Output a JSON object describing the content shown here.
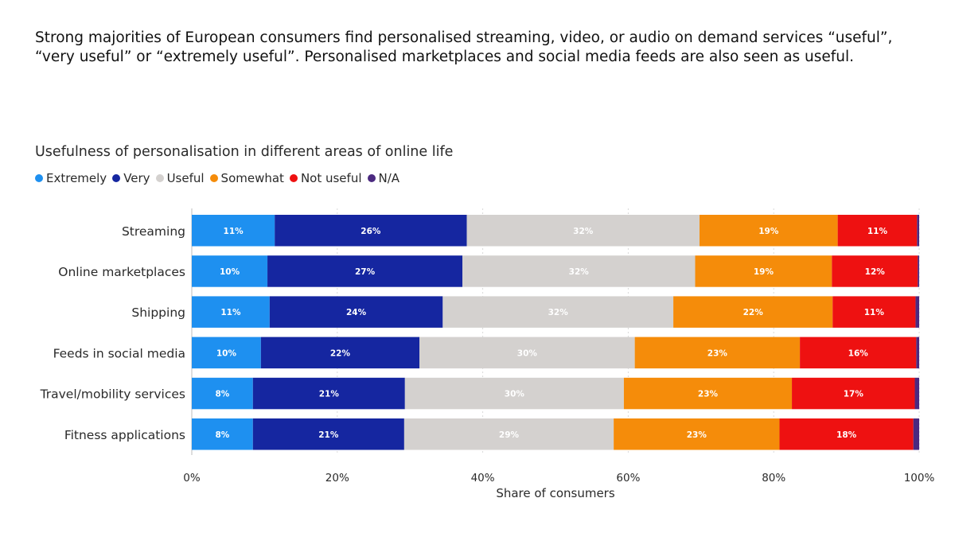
{
  "headline": "Strong majorities of European consumers find personalised streaming, video, or audio on demand services “useful”, “very useful” or “extremely useful”. Personalised marketplaces and social media feeds are also seen as useful.",
  "chart_data": {
    "type": "bar",
    "orientation": "horizontal",
    "stacked": true,
    "title": "Usefulness of personalisation in different areas of online life",
    "xlabel": "Share of consumers",
    "ylabel": "",
    "xlim": [
      0,
      100
    ],
    "xticks": [
      "0%",
      "20%",
      "40%",
      "60%",
      "80%",
      "100%"
    ],
    "grid": true,
    "legend_position": "top-left",
    "categories": [
      "Streaming",
      "Online marketplaces",
      "Shipping",
      "Feeds in social media",
      "Travel/mobility services",
      "Fitness applications"
    ],
    "series": [
      {
        "name": "Extremely",
        "color": "#1e90f0",
        "values": [
          11.4,
          10.4,
          10.7,
          9.5,
          8.4,
          8.4
        ],
        "labels": [
          "11%",
          "10%",
          "11%",
          "10%",
          "8%",
          "8%"
        ]
      },
      {
        "name": "Very",
        "color": "#1526a0",
        "values": [
          26.4,
          26.8,
          23.8,
          21.8,
          20.9,
          20.8
        ],
        "labels": [
          "26%",
          "27%",
          "24%",
          "22%",
          "21%",
          "21%"
        ]
      },
      {
        "name": "Useful",
        "color": "#d4d1cf",
        "values": [
          32.0,
          32.0,
          31.7,
          29.6,
          30.1,
          28.8
        ],
        "labels": [
          "32%",
          "32%",
          "32%",
          "30%",
          "30%",
          "29%"
        ]
      },
      {
        "name": "Somewhat",
        "color": "#f58c0a",
        "values": [
          19.0,
          18.8,
          21.9,
          22.7,
          23.1,
          22.8
        ],
        "labels": [
          "19%",
          "19%",
          "22%",
          "23%",
          "23%",
          "23%"
        ]
      },
      {
        "name": "Not useful",
        "color": "#ee1111",
        "values": [
          10.9,
          11.8,
          11.4,
          16.0,
          16.9,
          18.4
        ],
        "labels": [
          "11%",
          "12%",
          "11%",
          "16%",
          "17%",
          "18%"
        ]
      },
      {
        "name": "N/A",
        "color": "#4b2a80",
        "values": [
          0.3,
          0.2,
          0.5,
          0.4,
          0.6,
          0.8
        ],
        "labels": [
          "",
          "",
          "",
          "",
          "",
          ""
        ]
      }
    ]
  }
}
